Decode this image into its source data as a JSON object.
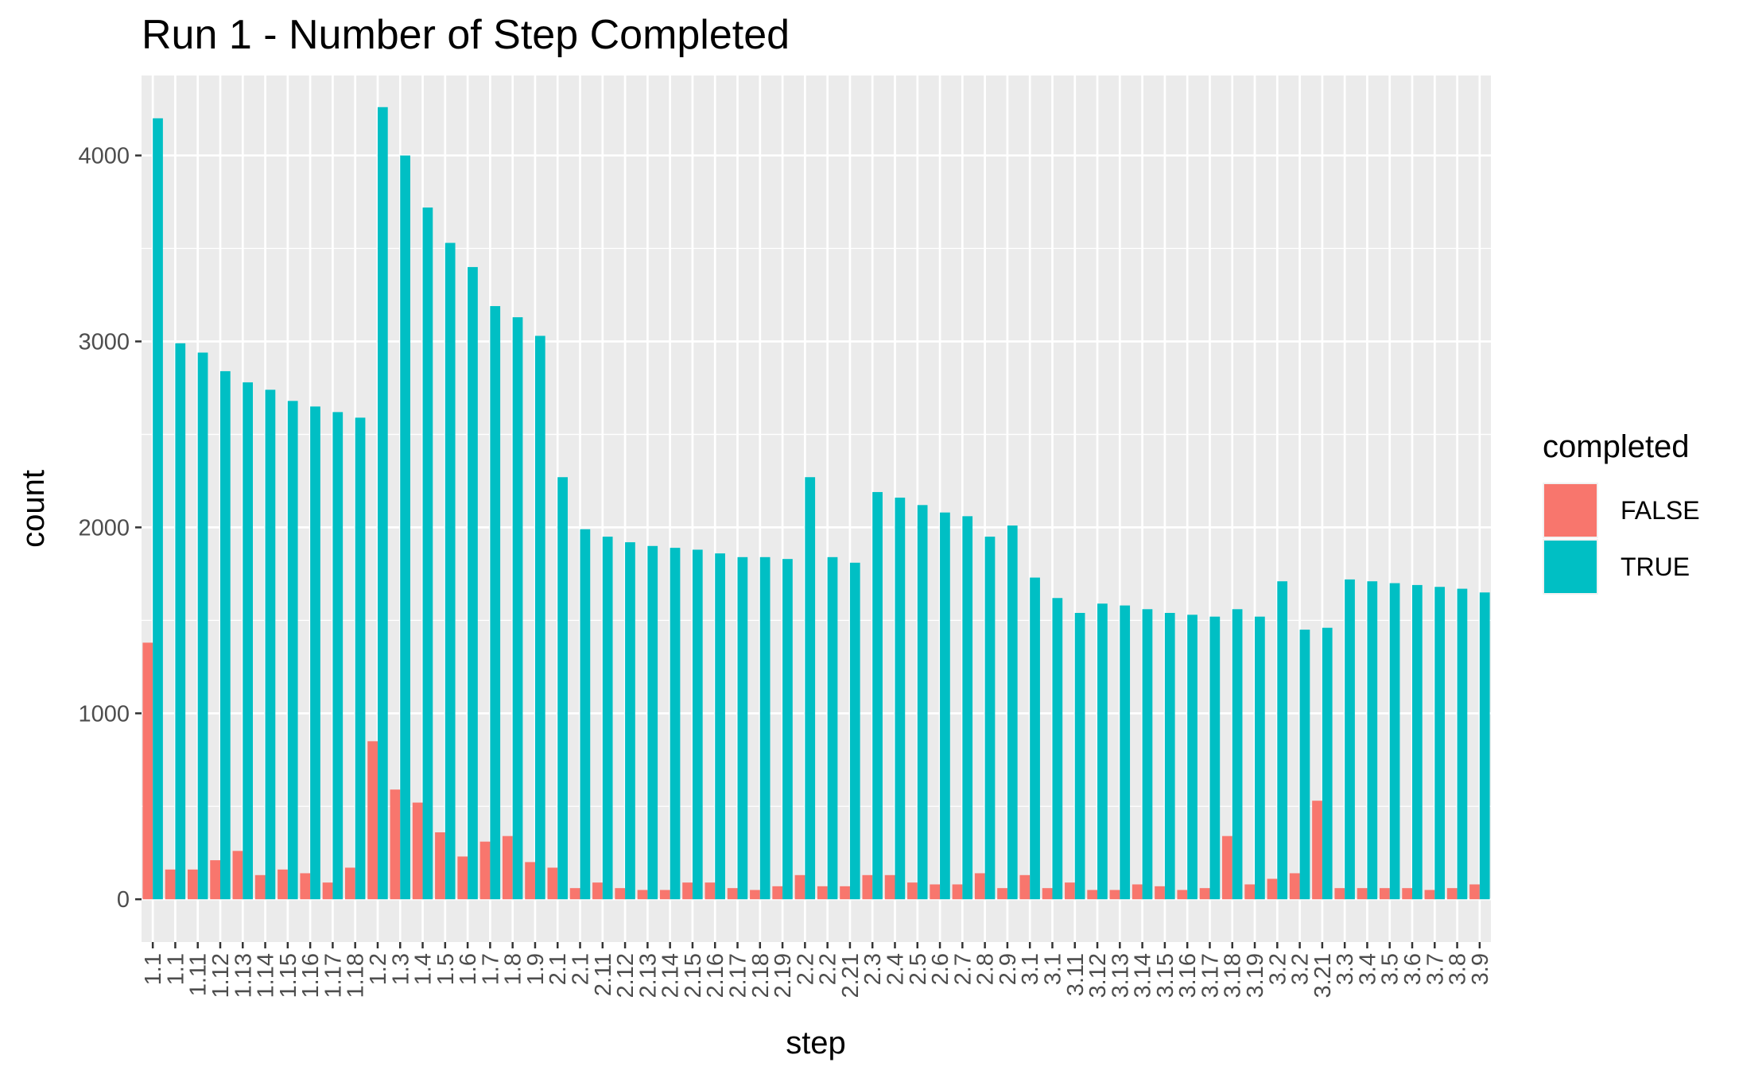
{
  "chart_data": {
    "type": "bar",
    "title": "Run 1 - Number of Step Completed",
    "xlabel": "step",
    "ylabel": "count",
    "ylim": [
      -230,
      4430
    ],
    "yticks": [
      0,
      1000,
      2000,
      3000,
      4000
    ],
    "grid": true,
    "legend_position": "right",
    "legend_title": "completed",
    "categories": [
      "1.1",
      "1.1",
      "1.11",
      "1.12",
      "1.13",
      "1.14",
      "1.15",
      "1.16",
      "1.17",
      "1.18",
      "1.2",
      "1.3",
      "1.4",
      "1.5",
      "1.6",
      "1.7",
      "1.8",
      "1.9",
      "2.1",
      "2.1",
      "2.11",
      "2.12",
      "2.13",
      "2.14",
      "2.15",
      "2.16",
      "2.17",
      "2.18",
      "2.19",
      "2.2",
      "2.2",
      "2.21",
      "2.3",
      "2.4",
      "2.5",
      "2.6",
      "2.7",
      "2.8",
      "2.9",
      "3.1",
      "3.1",
      "3.11",
      "3.12",
      "3.13",
      "3.14",
      "3.15",
      "3.16",
      "3.17",
      "3.18",
      "3.19",
      "3.2",
      "3.2",
      "3.21",
      "3.3",
      "3.4",
      "3.5",
      "3.6",
      "3.7",
      "3.8",
      "3.9"
    ],
    "series": [
      {
        "name": "FALSE",
        "color": "#F8766D",
        "values": [
          1380,
          160,
          160,
          210,
          260,
          130,
          160,
          140,
          90,
          170,
          850,
          590,
          520,
          360,
          230,
          310,
          340,
          200,
          170,
          60,
          90,
          60,
          50,
          50,
          90,
          90,
          60,
          50,
          70,
          130,
          70,
          70,
          130,
          130,
          90,
          80,
          80,
          140,
          60,
          130,
          60,
          90,
          50,
          50,
          80,
          70,
          50,
          60,
          340,
          80,
          110,
          140,
          530,
          60,
          60,
          60,
          60,
          50,
          60,
          80
        ]
      },
      {
        "name": "TRUE",
        "color": "#00BFC4",
        "values": [
          4200,
          2990,
          2940,
          2840,
          2780,
          2740,
          2680,
          2650,
          2620,
          2590,
          4260,
          4000,
          3720,
          3530,
          3400,
          3190,
          3130,
          3030,
          2270,
          1990,
          1950,
          1920,
          1900,
          1890,
          1880,
          1860,
          1840,
          1840,
          1830,
          2270,
          1840,
          1810,
          2190,
          2160,
          2120,
          2080,
          2060,
          1950,
          2010,
          1730,
          1620,
          1540,
          1590,
          1580,
          1560,
          1540,
          1530,
          1520,
          1560,
          1520,
          1710,
          1450,
          1460,
          1720,
          1710,
          1700,
          1690,
          1680,
          1670,
          1650
        ]
      }
    ]
  }
}
